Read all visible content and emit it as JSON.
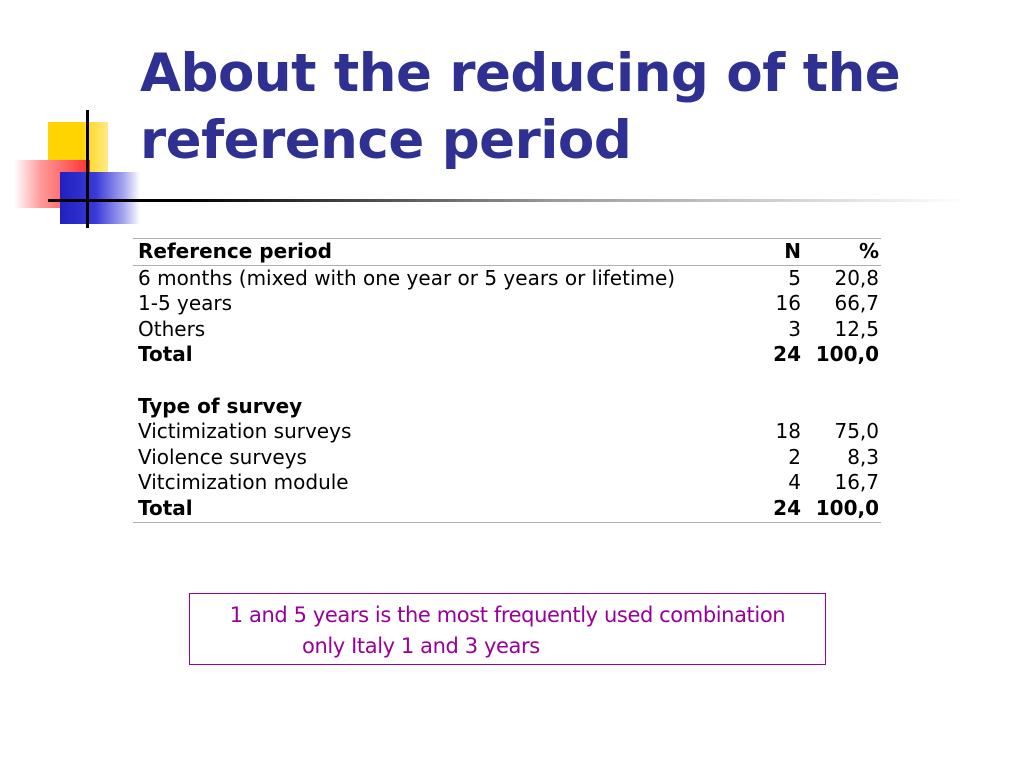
{
  "slide": {
    "title_line1": "About the reducing of the",
    "title_line2": "reference period"
  },
  "table": {
    "header": {
      "label": "Reference period",
      "n": "N",
      "pct": "%"
    },
    "reference_rows": [
      {
        "label": "6 months (mixed with one year or 5 years or lifetime)",
        "n": "5",
        "pct": "20,8"
      },
      {
        "label": "1-5 years",
        "n": "16",
        "pct": "66,7"
      },
      {
        "label": "Others",
        "n": "3",
        "pct": "12,5"
      }
    ],
    "reference_total": {
      "label": "Total",
      "n": "24",
      "pct": "100,0"
    },
    "survey_heading": "Type of survey",
    "survey_rows": [
      {
        "label": "Victimization surveys",
        "n": "18",
        "pct": "75,0"
      },
      {
        "label": "Violence surveys",
        "n": "2",
        "pct": "8,3"
      },
      {
        "label": "Vitcimization module",
        "n": "4",
        "pct": "16,7"
      }
    ],
    "survey_total": {
      "label": "Total",
      "n": "24",
      "pct": "100,0"
    }
  },
  "note": {
    "line1": "1 and 5 years is the most frequently used combination",
    "line2": "only Italy 1 and 3 years"
  },
  "colors": {
    "title": "#2e3192",
    "note": "#990099",
    "deco_yellow": "#ffd400",
    "deco_red": "#ff3030",
    "deco_blue": "#2020c0"
  }
}
